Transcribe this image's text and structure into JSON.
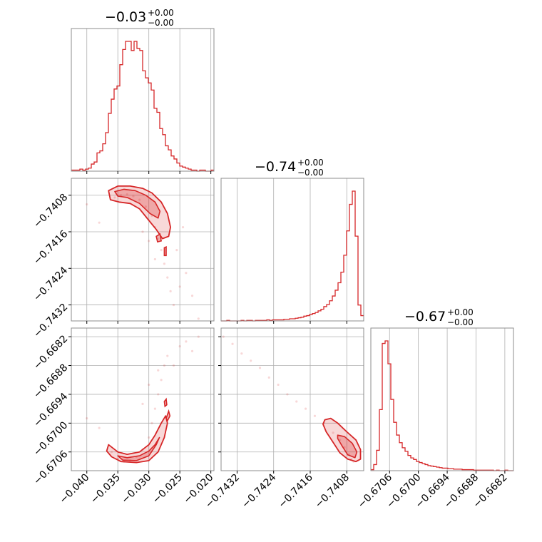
{
  "colors": {
    "series": "#d62728",
    "grid": "#b0b0b0"
  },
  "chart_data": {
    "type": "corner",
    "parameters": [
      {
        "title_value": "−0.03",
        "title_plus": "+0.00",
        "title_minus": "−0.00",
        "range": [
          -0.0425,
          -0.0195
        ],
        "ticks": [
          -0.04,
          -0.035,
          -0.03,
          -0.025,
          -0.02
        ],
        "tick_labels": [
          "−0.040",
          "−0.035",
          "−0.030",
          "−0.025",
          "−0.020"
        ]
      },
      {
        "title_value": "−0.74",
        "title_plus": "+0.00",
        "title_minus": "−0.00",
        "range": [
          -0.74355,
          -0.74043
        ],
        "ticks": [
          -0.7432,
          -0.7424,
          -0.7416,
          -0.7408
        ],
        "tick_labels": [
          "−0.7432",
          "−0.7424",
          "−0.7416",
          "−0.7408"
        ]
      },
      {
        "title_value": "−0.67",
        "title_plus": "+0.00",
        "title_minus": "−0.00",
        "range": [
          -0.67099,
          -0.66802
        ],
        "ticks": [
          -0.6706,
          -0.67,
          -0.6694,
          -0.6688,
          -0.6682
        ],
        "tick_labels": [
          "−0.6706",
          "−0.6700",
          "−0.6694",
          "−0.6688",
          "−0.6682"
        ]
      }
    ],
    "histograms": [
      {
        "param": 0,
        "bins": 50,
        "counts": [
          1,
          1,
          1,
          2,
          1,
          2,
          3,
          7,
          9,
          18,
          20,
          27,
          38,
          57,
          71,
          81,
          84,
          105,
          120,
          128,
          128,
          119,
          128,
          121,
          119,
          99,
          92,
          87,
          80,
          62,
          58,
          42,
          36,
          25,
          21,
          15,
          12,
          8,
          5,
          4,
          3,
          2,
          1,
          1,
          0,
          1,
          1,
          0,
          0,
          1
        ]
      },
      {
        "param": 1,
        "bins": 50,
        "counts": [
          0,
          0,
          1,
          0,
          0,
          0,
          0,
          1,
          0,
          1,
          1,
          0,
          1,
          1,
          1,
          1,
          2,
          1,
          2,
          2,
          2,
          2,
          3,
          3,
          4,
          4,
          5,
          6,
          7,
          9,
          10,
          12,
          14,
          16,
          19,
          22,
          27,
          31,
          38,
          47,
          58,
          72,
          92,
          124,
          170,
          220,
          245,
          160,
          30,
          10
        ]
      },
      {
        "param": 2,
        "bins": 50,
        "counts": [
          2,
          12,
          40,
          120,
          250,
          255,
          210,
          140,
          95,
          70,
          55,
          45,
          38,
          30,
          25,
          22,
          18,
          16,
          14,
          12,
          10,
          9,
          8,
          7,
          6,
          5,
          5,
          4,
          4,
          3,
          3,
          3,
          2,
          2,
          2,
          2,
          1,
          1,
          1,
          1,
          1,
          1,
          1,
          0,
          1,
          0,
          0,
          1,
          0,
          0
        ]
      }
    ],
    "scatter_2d": [
      {
        "x_param": 0,
        "y_param": 1,
        "points": [
          [
            -0.0355,
            -0.74085
          ],
          [
            -0.0345,
            -0.7408
          ],
          [
            -0.0335,
            -0.74078
          ],
          [
            -0.0325,
            -0.74082
          ],
          [
            -0.0315,
            -0.7409
          ],
          [
            -0.0305,
            -0.74105
          ],
          [
            -0.0295,
            -0.74125
          ],
          [
            -0.029,
            -0.7415
          ],
          [
            -0.0285,
            -0.74175
          ],
          [
            -0.028,
            -0.742
          ],
          [
            -0.0275,
            -0.7423
          ],
          [
            -0.027,
            -0.7426
          ],
          [
            -0.0265,
            -0.7429
          ],
          [
            -0.026,
            -0.7432
          ],
          [
            -0.025,
            -0.7428
          ],
          [
            -0.024,
            -0.7425
          ],
          [
            -0.023,
            -0.743
          ],
          [
            -0.022,
            -0.7435
          ],
          [
            -0.038,
            -0.7414
          ],
          [
            -0.04,
            -0.741
          ],
          [
            -0.031,
            -0.7416
          ],
          [
            -0.03,
            -0.7418
          ],
          [
            -0.029,
            -0.7422
          ],
          [
            -0.0255,
            -0.742
          ],
          [
            -0.0245,
            -0.7415
          ]
        ]
      },
      {
        "x_param": 0,
        "y_param": 2,
        "points": [
          [
            -0.036,
            -0.6706
          ],
          [
            -0.035,
            -0.67075
          ],
          [
            -0.034,
            -0.6708
          ],
          [
            -0.033,
            -0.67078
          ],
          [
            -0.032,
            -0.6707
          ],
          [
            -0.031,
            -0.67055
          ],
          [
            -0.03,
            -0.6703
          ],
          [
            -0.0295,
            -0.67
          ],
          [
            -0.029,
            -0.6697
          ],
          [
            -0.0285,
            -0.6694
          ],
          [
            -0.028,
            -0.6691
          ],
          [
            -0.0275,
            -0.6688
          ],
          [
            -0.027,
            -0.6686
          ],
          [
            -0.026,
            -0.6688
          ],
          [
            -0.025,
            -0.6684
          ],
          [
            -0.024,
            -0.6683
          ],
          [
            -0.023,
            -0.6685
          ],
          [
            -0.022,
            -0.6682
          ],
          [
            -0.038,
            -0.6701
          ],
          [
            -0.04,
            -0.6699
          ],
          [
            -0.031,
            -0.6696
          ],
          [
            -0.03,
            -0.6692
          ],
          [
            -0.0285,
            -0.6689
          ]
        ]
      },
      {
        "x_param": 1,
        "y_param": 2,
        "points": [
          [
            -0.7435,
            -0.6682
          ],
          [
            -0.7433,
            -0.66835
          ],
          [
            -0.7431,
            -0.66855
          ],
          [
            -0.7429,
            -0.6687
          ],
          [
            -0.7427,
            -0.66885
          ],
          [
            -0.7425,
            -0.66905
          ],
          [
            -0.7423,
            -0.6692
          ],
          [
            -0.7421,
            -0.6694
          ],
          [
            -0.7419,
            -0.66955
          ],
          [
            -0.7417,
            -0.6697
          ],
          [
            -0.7415,
            -0.66985
          ],
          [
            -0.7413,
            -0.67
          ],
          [
            -0.7411,
            -0.6702
          ],
          [
            -0.74095,
            -0.67035
          ],
          [
            -0.74085,
            -0.6705
          ],
          [
            -0.74075,
            -0.67065
          ],
          [
            -0.7407,
            -0.67075
          ],
          [
            -0.74065,
            -0.6708
          ]
        ]
      }
    ],
    "contours_2d": [
      {
        "x_param": 0,
        "y_param": 1,
        "outer": [
          [
            -0.0365,
            -0.7407
          ],
          [
            -0.035,
            -0.7406
          ],
          [
            -0.033,
            -0.7406
          ],
          [
            -0.031,
            -0.74065
          ],
          [
            -0.0295,
            -0.74075
          ],
          [
            -0.028,
            -0.74095
          ],
          [
            -0.027,
            -0.7412
          ],
          [
            -0.0265,
            -0.7415
          ],
          [
            -0.0268,
            -0.7417
          ],
          [
            -0.0278,
            -0.74175
          ],
          [
            -0.0288,
            -0.74155
          ],
          [
            -0.03,
            -0.74135
          ],
          [
            -0.0315,
            -0.7411
          ],
          [
            -0.033,
            -0.74098
          ],
          [
            -0.0348,
            -0.74095
          ],
          [
            -0.0362,
            -0.7409
          ]
        ],
        "inner": [
          [
            -0.0355,
            -0.74072
          ],
          [
            -0.034,
            -0.74067
          ],
          [
            -0.0322,
            -0.7407
          ],
          [
            -0.0305,
            -0.7408
          ],
          [
            -0.029,
            -0.74095
          ],
          [
            -0.0282,
            -0.74115
          ],
          [
            -0.0285,
            -0.7413
          ],
          [
            -0.0298,
            -0.7412
          ],
          [
            -0.0315,
            -0.74098
          ],
          [
            -0.0335,
            -0.74085
          ],
          [
            -0.035,
            -0.74082
          ]
        ],
        "islands": [
          [
            [
              -0.0288,
              -0.7417
            ],
            [
              -0.0282,
              -0.74165
            ],
            [
              -0.028,
              -0.7418
            ],
            [
              -0.0286,
              -0.74182
            ]
          ],
          [
            [
              -0.0275,
              -0.74195
            ],
            [
              -0.0272,
              -0.74193
            ],
            [
              -0.0272,
              -0.74212
            ],
            [
              -0.0275,
              -0.74212
            ]
          ]
        ]
      },
      {
        "x_param": 0,
        "y_param": 2,
        "outer": [
          [
            -0.0365,
            -0.67045
          ],
          [
            -0.035,
            -0.6706
          ],
          [
            -0.0335,
            -0.67065
          ],
          [
            -0.0315,
            -0.6706
          ],
          [
            -0.03,
            -0.67045
          ],
          [
            -0.029,
            -0.67025
          ],
          [
            -0.028,
            -0.67
          ],
          [
            -0.0273,
            -0.66985
          ],
          [
            -0.027,
            -0.67
          ],
          [
            -0.0275,
            -0.6703
          ],
          [
            -0.0285,
            -0.6706
          ],
          [
            -0.03,
            -0.67078
          ],
          [
            -0.032,
            -0.67082
          ],
          [
            -0.0345,
            -0.6708
          ],
          [
            -0.036,
            -0.6707
          ],
          [
            -0.0368,
            -0.67058
          ]
        ],
        "inner": [
          [
            -0.035,
            -0.67068
          ],
          [
            -0.0335,
            -0.67072
          ],
          [
            -0.0315,
            -0.67068
          ],
          [
            -0.03,
            -0.67058
          ],
          [
            -0.029,
            -0.67045
          ],
          [
            -0.0283,
            -0.6703
          ],
          [
            -0.0288,
            -0.67045
          ],
          [
            -0.03,
            -0.67068
          ],
          [
            -0.032,
            -0.67078
          ],
          [
            -0.0342,
            -0.67077
          ]
        ],
        "islands": [
          [
            [
              -0.0272,
              -0.6699
            ],
            [
              -0.0268,
              -0.66975
            ],
            [
              -0.0266,
              -0.66985
            ],
            [
              -0.027,
              -0.66995
            ]
          ],
          [
            [
              -0.0275,
              -0.66955
            ],
            [
              -0.0272,
              -0.6695
            ],
            [
              -0.0271,
              -0.66962
            ],
            [
              -0.0274,
              -0.66965
            ]
          ]
        ]
      },
      {
        "x_param": 1,
        "y_param": 2,
        "outer": [
          [
            -0.74128,
            -0.66993
          ],
          [
            -0.74115,
            -0.6699
          ],
          [
            -0.741,
            -0.67
          ],
          [
            -0.7408,
            -0.67018
          ],
          [
            -0.7406,
            -0.67035
          ],
          [
            -0.7405,
            -0.67055
          ],
          [
            -0.7405,
            -0.67075
          ],
          [
            -0.7406,
            -0.6708
          ],
          [
            -0.74078,
            -0.67075
          ],
          [
            -0.74095,
            -0.67062
          ],
          [
            -0.7411,
            -0.6704
          ],
          [
            -0.74125,
            -0.67018
          ],
          [
            -0.74132,
            -0.67002
          ]
        ],
        "inner": [
          [
            -0.741,
            -0.67025
          ],
          [
            -0.74085,
            -0.67028
          ],
          [
            -0.74068,
            -0.67042
          ],
          [
            -0.74058,
            -0.6706
          ],
          [
            -0.74062,
            -0.67072
          ],
          [
            -0.74078,
            -0.67066
          ],
          [
            -0.7409,
            -0.67048
          ],
          [
            -0.741,
            -0.67032
          ]
        ],
        "islands": []
      }
    ]
  }
}
